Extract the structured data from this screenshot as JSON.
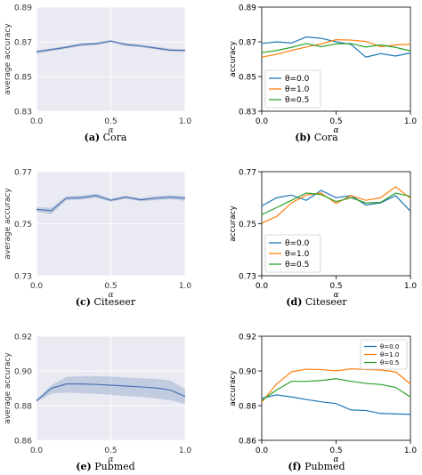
{
  "chart_data": [
    {
      "type": "line",
      "style": "seaborn",
      "band": true,
      "xlabel": "α",
      "ylabel": "average accuracy",
      "xlim": [
        0,
        1
      ],
      "ylim": [
        0.83,
        0.89
      ],
      "xticks": [
        "0.0",
        "0.5",
        "1.0"
      ],
      "yticks": [
        "0.83",
        "0.85",
        "0.87",
        "0.89"
      ],
      "x": [
        0.0,
        0.1,
        0.2,
        0.3,
        0.4,
        0.5,
        0.6,
        0.7,
        0.8,
        0.9,
        1.0
      ],
      "series": [
        {
          "values": [
            0.8642,
            0.8655,
            0.8668,
            0.8684,
            0.8689,
            0.8704,
            0.8684,
            0.8676,
            0.8664,
            0.8652,
            0.865
          ],
          "lower": [
            0.8633,
            0.8647,
            0.8661,
            0.8676,
            0.868,
            0.8698,
            0.8677,
            0.8669,
            0.8657,
            0.8645,
            0.8643
          ],
          "upper": [
            0.8652,
            0.8663,
            0.8676,
            0.8692,
            0.8698,
            0.871,
            0.8692,
            0.8684,
            0.8672,
            0.866,
            0.8658
          ],
          "color": "#4c72b0"
        }
      ],
      "caption_letter": "(a)",
      "caption_text": "Cora"
    },
    {
      "type": "line",
      "style": "white",
      "band": false,
      "xlabel": "α",
      "ylabel": "accuracy",
      "xlim": [
        0,
        1
      ],
      "ylim": [
        0.83,
        0.89
      ],
      "xticks": [
        "0.0",
        "0.5",
        "1.0"
      ],
      "yticks": [
        "0.83",
        "0.85",
        "0.87",
        "0.89"
      ],
      "legend": "lower-left",
      "x": [
        0.0,
        0.1,
        0.2,
        0.3,
        0.4,
        0.5,
        0.6,
        0.7,
        0.8,
        0.9,
        1.0
      ],
      "series": [
        {
          "name": "θ=0.0",
          "color": "#1f77b4",
          "values": [
            0.869,
            0.87,
            0.8693,
            0.8728,
            0.872,
            0.87,
            0.8685,
            0.8612,
            0.8632,
            0.8618,
            0.8636
          ]
        },
        {
          "name": "θ=1.0",
          "color": "#ff7f0e",
          "values": [
            0.8612,
            0.8628,
            0.865,
            0.867,
            0.8688,
            0.8712,
            0.871,
            0.8702,
            0.8672,
            0.8682,
            0.8686
          ]
        },
        {
          "name": "θ=0.5",
          "color": "#2ca02c",
          "values": [
            0.8638,
            0.865,
            0.8668,
            0.869,
            0.8672,
            0.8688,
            0.869,
            0.867,
            0.8682,
            0.8668,
            0.8648
          ]
        }
      ],
      "caption_letter": "(b)",
      "caption_text": "Cora"
    },
    {
      "type": "line",
      "style": "seaborn",
      "band": true,
      "xlabel": "α",
      "ylabel": "average accuracy",
      "xlim": [
        0,
        1
      ],
      "ylim": [
        0.73,
        0.77
      ],
      "xticks": [
        "0.0",
        "0.5",
        "1.0"
      ],
      "yticks": [
        "0.73",
        "0.75",
        "0.77"
      ],
      "x": [
        0.0,
        0.1,
        0.2,
        0.3,
        0.4,
        0.5,
        0.6,
        0.7,
        0.8,
        0.9,
        1.0
      ],
      "series": [
        {
          "values": [
            0.7555,
            0.755,
            0.7598,
            0.76,
            0.7608,
            0.759,
            0.7602,
            0.7592,
            0.7598,
            0.7602,
            0.7598
          ],
          "lower": [
            0.7546,
            0.7536,
            0.759,
            0.7592,
            0.76,
            0.7584,
            0.7596,
            0.7586,
            0.759,
            0.7594,
            0.7588
          ],
          "upper": [
            0.7563,
            0.7562,
            0.7606,
            0.7608,
            0.7616,
            0.7596,
            0.7608,
            0.7598,
            0.7606,
            0.761,
            0.7606
          ],
          "color": "#4c72b0"
        }
      ],
      "caption_letter": "(c)",
      "caption_text": "Citeseer"
    },
    {
      "type": "line",
      "style": "white",
      "band": false,
      "xlabel": "α",
      "ylabel": "accuracy",
      "xlim": [
        0,
        1
      ],
      "ylim": [
        0.73,
        0.77
      ],
      "xticks": [
        "0.0",
        "0.5",
        "1.0"
      ],
      "yticks": [
        "0.73",
        "0.75",
        "0.77"
      ],
      "legend": "lower-left",
      "x": [
        0.0,
        0.1,
        0.2,
        0.3,
        0.4,
        0.5,
        0.6,
        0.7,
        0.8,
        0.9,
        1.0
      ],
      "series": [
        {
          "name": "θ=0.0",
          "color": "#1f77b4",
          "values": [
            0.7568,
            0.76,
            0.761,
            0.759,
            0.7628,
            0.76,
            0.7608,
            0.7572,
            0.758,
            0.7608,
            0.7548
          ]
        },
        {
          "name": "θ=1.0",
          "color": "#ff7f0e",
          "values": [
            0.7502,
            0.7528,
            0.758,
            0.761,
            0.7618,
            0.7578,
            0.7608,
            0.759,
            0.76,
            0.7642,
            0.7598
          ]
        },
        {
          "name": "θ=0.5",
          "color": "#2ca02c",
          "values": [
            0.7535,
            0.7562,
            0.759,
            0.7618,
            0.7612,
            0.7585,
            0.76,
            0.758,
            0.7582,
            0.7618,
            0.7605
          ]
        }
      ],
      "caption_letter": "(d)",
      "caption_text": "Citeseer"
    },
    {
      "type": "line",
      "style": "seaborn",
      "band": true,
      "xlabel": "α",
      "ylabel": "average accuracy",
      "xlim": [
        0,
        1
      ],
      "ylim": [
        0.86,
        0.92
      ],
      "xticks": [
        "0.0",
        "0.5",
        "1.0"
      ],
      "yticks": [
        "0.86",
        "0.88",
        "0.90",
        "0.92"
      ],
      "x": [
        0.0,
        0.1,
        0.2,
        0.3,
        0.4,
        0.5,
        0.6,
        0.7,
        0.8,
        0.9,
        1.0
      ],
      "series": [
        {
          "values": [
            0.8828,
            0.89,
            0.8925,
            0.8925,
            0.8922,
            0.8918,
            0.8913,
            0.8908,
            0.8902,
            0.889,
            0.8852
          ],
          "lower": [
            0.882,
            0.887,
            0.8875,
            0.8872,
            0.8868,
            0.8862,
            0.8855,
            0.885,
            0.8842,
            0.883,
            0.881
          ],
          "upper": [
            0.8836,
            0.8918,
            0.8965,
            0.897,
            0.897,
            0.8968,
            0.8962,
            0.8958,
            0.8955,
            0.8945,
            0.8895
          ],
          "color": "#4c72b0"
        }
      ],
      "caption_letter": "(e)",
      "caption_text": "Pubmed"
    },
    {
      "type": "line",
      "style": "white",
      "band": false,
      "xlabel": "α",
      "ylabel": "accuracy",
      "xlim": [
        0,
        1
      ],
      "ylim": [
        0.86,
        0.92
      ],
      "xticks": [
        "0.0",
        "0.5",
        "1.0"
      ],
      "yticks": [
        "0.86",
        "0.88",
        "0.90",
        "0.92"
      ],
      "legend": "top-right",
      "x": [
        0.0,
        0.1,
        0.2,
        0.3,
        0.4,
        0.5,
        0.6,
        0.7,
        0.8,
        0.9,
        1.0
      ],
      "series": [
        {
          "name": "θ=0.0",
          "color": "#1f77b4",
          "values": [
            0.8842,
            0.8862,
            0.885,
            0.8835,
            0.8822,
            0.8812,
            0.8775,
            0.8772,
            0.8755,
            0.8752,
            0.875
          ]
        },
        {
          "name": "θ=1.0",
          "color": "#ff7f0e",
          "values": [
            0.882,
            0.8925,
            0.8995,
            0.901,
            0.9008,
            0.9,
            0.9012,
            0.9008,
            0.9005,
            0.8995,
            0.8925
          ]
        },
        {
          "name": "θ=0.5",
          "color": "#2ca02c",
          "values": [
            0.883,
            0.889,
            0.894,
            0.894,
            0.8945,
            0.8955,
            0.894,
            0.8928,
            0.8922,
            0.8905,
            0.885
          ]
        }
      ],
      "caption_letter": "(f)",
      "caption_text": "Pubmed"
    }
  ]
}
